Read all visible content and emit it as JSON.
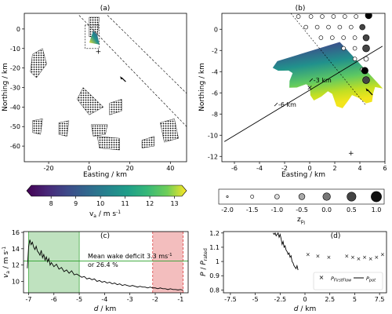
{
  "chart_data": [
    {
      "panel": "(a)",
      "type": "scatter",
      "xlabel": "Easting / km",
      "ylabel": "Northing / km",
      "xlim": [
        -32,
        48
      ],
      "ylim": [
        -68,
        8
      ],
      "xticks": [
        "-20",
        "0",
        "20",
        "40"
      ],
      "xtick_values": [
        -20,
        0,
        20,
        40
      ],
      "yticks": [
        "0",
        "-10",
        "-20",
        "-30",
        "-40",
        "-50",
        "-60"
      ],
      "ytick_values": [
        0,
        -10,
        -20,
        -30,
        -40,
        -50,
        -60
      ],
      "wind_farms": [
        {
          "name": "west",
          "polygon": [
            [
              -28,
              -13
            ],
            [
              -23,
              -10
            ],
            [
              -21,
              -18
            ],
            [
              -26,
              -25
            ],
            [
              -29,
              -22
            ]
          ]
        },
        {
          "name": "north",
          "polygon": [
            [
              0,
              6
            ],
            [
              5,
              6
            ],
            [
              4,
              -4
            ],
            [
              0,
              -4
            ]
          ]
        },
        {
          "name": "sw1",
          "polygon": [
            [
              -28,
              -47
            ],
            [
              -23,
              -46
            ],
            [
              -24,
              -54
            ],
            [
              -28,
              -53
            ]
          ]
        },
        {
          "name": "sw2",
          "polygon": [
            [
              -15,
              -48
            ],
            [
              -10,
              -47
            ],
            [
              -11,
              -55
            ],
            [
              -15,
              -54
            ]
          ]
        },
        {
          "name": "s1",
          "polygon": [
            [
              1,
              -49
            ],
            [
              9,
              -49
            ],
            [
              8,
              -54
            ],
            [
              2,
              -55
            ]
          ]
        },
        {
          "name": "s2",
          "polygon": [
            [
              4,
              -55
            ],
            [
              15,
              -56
            ],
            [
              15,
              -62
            ],
            [
              5,
              -61
            ]
          ]
        },
        {
          "name": "se1",
          "polygon": [
            [
              26,
              -57
            ],
            [
              32,
              -55
            ],
            [
              32,
              -60
            ],
            [
              26,
              -61
            ]
          ]
        },
        {
          "name": "se2",
          "polygon": [
            [
              35,
              -48
            ],
            [
              42,
              -46
            ],
            [
              44,
              -56
            ],
            [
              37,
              -58
            ]
          ]
        },
        {
          "name": "c1",
          "polygon": [
            [
              10,
              -38
            ],
            [
              16,
              -36
            ],
            [
              16,
              -42
            ],
            [
              10,
              -44
            ]
          ]
        },
        {
          "name": "c2",
          "polygon": [
            [
              -3,
              -30
            ],
            [
              7,
              -40
            ],
            [
              0,
              -44
            ],
            [
              -6,
              -36
            ]
          ]
        }
      ],
      "scan_box": [
        [
          -2,
          2
        ],
        [
          -2,
          -10
        ],
        [
          5,
          -10
        ],
        [
          5,
          2
        ]
      ],
      "scan_field": [
        [
          0,
          -7
        ],
        [
          2,
          -1
        ],
        [
          4,
          -3
        ],
        [
          5,
          -8
        ]
      ],
      "corridor_lines": [
        [
          [
            -5,
            7
          ],
          [
            48,
            -50
          ]
        ],
        [
          [
            9,
            7
          ],
          [
            48,
            -33
          ]
        ]
      ],
      "marker_plus": [
        4.5,
        -11.5
      ],
      "wind_arrow_from": [
        18,
        -27
      ],
      "wind_arrow_to": [
        16,
        -25
      ]
    },
    {
      "panel": "(b)",
      "type": "heatmap",
      "xlabel": "Easting / km",
      "ylabel": "Northing / km",
      "xlim": [
        -7,
        6
      ],
      "ylim": [
        -12.5,
        1.5
      ],
      "xticks": [
        "-6",
        "-4",
        "-2",
        "0",
        "2",
        "4",
        "6"
      ],
      "xtick_values": [
        -6,
        -4,
        -2,
        0,
        2,
        4,
        6
      ],
      "yticks": [
        "0",
        "-2",
        "-4",
        "-6",
        "-8",
        "-10",
        "-12"
      ],
      "ytick_values": [
        0,
        -2,
        -4,
        -6,
        -8,
        -10,
        -12
      ],
      "annotations": [
        {
          "text": "-3 km",
          "x": 0.3,
          "y": -4.8
        },
        {
          "text": "-6 km",
          "x": -2.5,
          "y": -7.1
        }
      ],
      "transect": [
        [
          -6.8,
          -10.6
        ],
        [
          5.8,
          -1.6
        ]
      ],
      "corridor_line": [
        [
          -1.5,
          1.5
        ],
        [
          4.5,
          -7.2
        ]
      ],
      "marker_x": [
        0.0,
        -5.5
      ],
      "marker_plus": [
        3.3,
        -11.7
      ],
      "wind_arrow_from": [
        5.0,
        -6.2
      ],
      "wind_arrow_to": [
        4.6,
        -5.7
      ]
    },
    {
      "type": "colorbar",
      "label": "v_a / m s⁻¹",
      "range": [
        7.2,
        13.3
      ],
      "ticks": [
        "8",
        "9",
        "10",
        "11",
        "12",
        "13"
      ],
      "tick_values": [
        8,
        9,
        10,
        11,
        12,
        13
      ]
    },
    {
      "type": "legend",
      "label": "z_pj",
      "sizes": [
        "-2.0",
        "-1.5",
        "-1.0",
        "-0.5",
        "0.0",
        "0.5",
        "1.0"
      ]
    },
    {
      "panel": "(c)",
      "type": "line",
      "xlabel": "d / km",
      "ylabel": "v_a / m s⁻¹",
      "xlim": [
        -7.2,
        -0.7
      ],
      "ylim": [
        8.6,
        16.1
      ],
      "xticks": [
        "-7",
        "-6",
        "-5",
        "-4",
        "-3",
        "-2",
        "-1"
      ],
      "xtick_values": [
        -7,
        -6,
        -5,
        -4,
        -3,
        -2,
        -1
      ],
      "yticks": [
        "10",
        "12",
        "14",
        "16"
      ],
      "ytick_values": [
        10,
        12,
        14,
        16
      ],
      "reference_line": 12.5,
      "shaded_regions": [
        {
          "x0": -7.0,
          "x1": -5.0,
          "color": "#2ca02c"
        },
        {
          "x0": -2.1,
          "x1": -0.9,
          "color": "#d62728"
        }
      ],
      "annotation": {
        "text_line1": "Mean wake deficit 3.3 ms⁻¹",
        "text_line2": "or 26.4 %",
        "x": -4.9,
        "y": 12.2
      },
      "x": [
        -7.05,
        -7.0,
        -6.95,
        -6.9,
        -6.85,
        -6.8,
        -6.75,
        -6.7,
        -6.65,
        -6.6,
        -6.55,
        -6.5,
        -6.45,
        -6.4,
        -6.35,
        -6.3,
        -6.25,
        -6.2,
        -6.15,
        -6.1,
        -6.0,
        -5.9,
        -5.8,
        -5.7,
        -5.6,
        -5.5,
        -5.4,
        -5.3,
        -5.2,
        -5.1,
        -5.0,
        -4.9,
        -4.8,
        -4.7,
        -4.6,
        -4.5,
        -4.4,
        -4.3,
        -4.2,
        -4.1,
        -4.0,
        -3.9,
        -3.8,
        -3.7,
        -3.6,
        -3.5,
        -3.4,
        -3.3,
        -3.2,
        -3.1,
        -3.0,
        -2.9,
        -2.8,
        -2.7,
        -2.6,
        -2.5,
        -2.4,
        -2.3,
        -2.2,
        -2.1,
        -2.0,
        -1.9,
        -1.8,
        -1.7,
        -1.6,
        -1.5,
        -1.4,
        -1.3,
        -1.2,
        -1.1,
        -1.0,
        -0.9
      ],
      "y": [
        11.6,
        14.2,
        15.1,
        14.5,
        14.8,
        14.2,
        13.9,
        14.3,
        13.7,
        13.5,
        13.2,
        13.8,
        12.9,
        13.3,
        12.6,
        13.0,
        12.4,
        12.8,
        12.0,
        12.3,
        11.8,
        12.1,
        11.5,
        11.7,
        11.2,
        11.4,
        11.0,
        11.3,
        10.8,
        10.9,
        10.7,
        10.5,
        10.6,
        10.3,
        10.4,
        10.2,
        10.3,
        10.0,
        10.1,
        9.9,
        10.0,
        9.8,
        9.9,
        9.7,
        9.8,
        9.6,
        9.7,
        9.5,
        9.6,
        9.5,
        9.4,
        9.5,
        9.4,
        9.3,
        9.4,
        9.3,
        9.3,
        9.2,
        9.3,
        9.2,
        9.2,
        9.1,
        9.2,
        9.1,
        9.1,
        9.0,
        9.1,
        9.0,
        9.0,
        8.95,
        9.0,
        8.9
      ]
    },
    {
      "panel": "(d)",
      "type": "line",
      "xlabel": "d / km",
      "ylabel": "P / P_rated",
      "xlim": [
        -8.2,
        8.2
      ],
      "ylim": [
        0.78,
        1.21
      ],
      "xticks": [
        "-7.5",
        "-5",
        "-2.5",
        "0",
        "2.5",
        "5",
        "7.5"
      ],
      "xtick_values": [
        -7.5,
        -5,
        -2.5,
        0,
        2.5,
        5,
        7.5
      ],
      "yticks": [
        "0.8",
        "0.9",
        "1",
        "1.1",
        "1.2"
      ],
      "ytick_values": [
        0.8,
        0.9,
        1.0,
        1.1,
        1.2
      ],
      "series": [
        {
          "name": "P_FirstFlow",
          "marker": "x",
          "color": "#d62728",
          "x": [
            0.3,
            1.3,
            2.4,
            4.2,
            4.8,
            5.4,
            6.0,
            6.6,
            7.2,
            7.8
          ],
          "y": [
            1.05,
            1.04,
            1.03,
            1.04,
            1.03,
            1.02,
            1.03,
            1.02,
            1.03,
            1.05
          ]
        },
        {
          "name": "P_pot",
          "color": "#000000",
          "x": [
            -3.2,
            -3.1,
            -3.0,
            -2.9,
            -2.8,
            -2.7,
            -2.6,
            -2.5,
            -2.4,
            -2.3,
            -2.2,
            -2.1,
            -2.0,
            -1.9,
            -1.8,
            -1.7,
            -1.6,
            -1.5,
            -1.4,
            -1.3,
            -1.2,
            -1.1,
            -1.0,
            -0.9,
            -0.8,
            -0.7
          ],
          "y": [
            1.2,
            1.19,
            1.2,
            1.18,
            1.19,
            1.2,
            1.17,
            1.19,
            1.16,
            1.12,
            1.14,
            1.1,
            1.11,
            1.08,
            1.07,
            1.05,
            1.06,
            1.03,
            1.04,
            1.0,
            0.99,
            0.97,
            0.96,
            0.95,
            0.97,
            0.94
          ]
        }
      ],
      "legend": "bottom-right"
    }
  ]
}
